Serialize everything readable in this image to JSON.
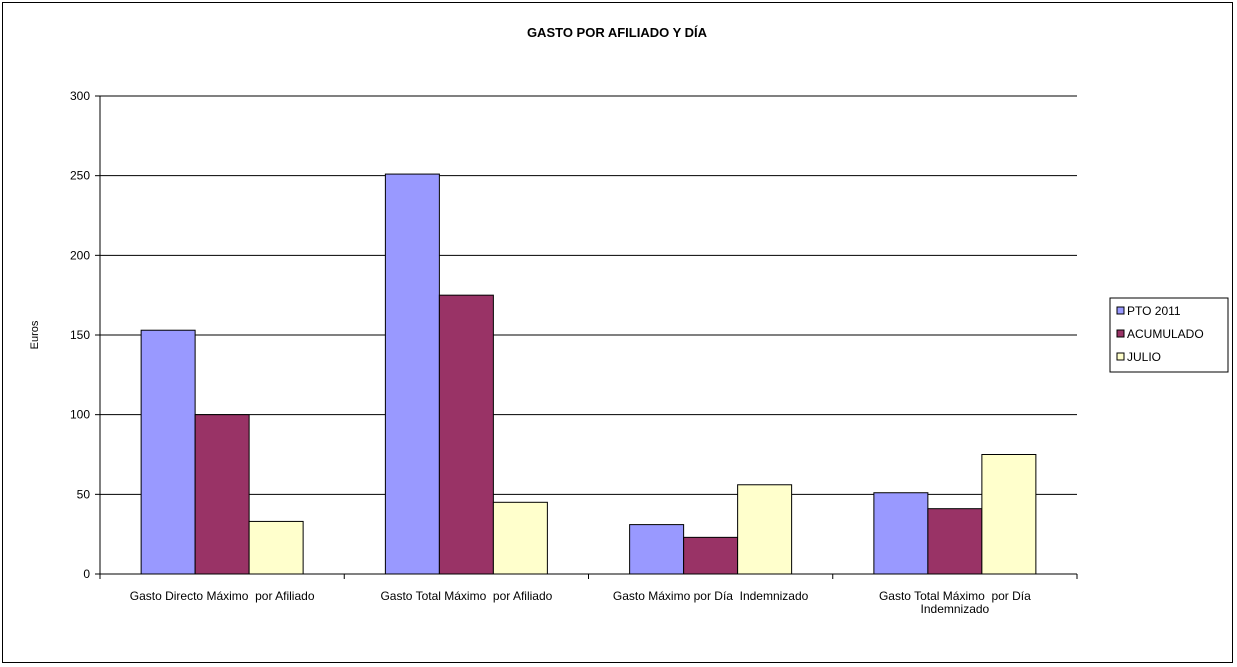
{
  "chart_data": {
    "type": "bar",
    "title": "GASTO POR AFILIADO Y DÍA",
    "xlabel": "",
    "ylabel": "Euros",
    "ylim": [
      0,
      300
    ],
    "yticks": [
      0,
      50,
      100,
      150,
      200,
      250,
      300
    ],
    "grid": true,
    "legend_position": "right",
    "categories": [
      [
        "Gasto Directo Máximo  por Afiliado"
      ],
      [
        "Gasto Total Máximo  por Afiliado"
      ],
      [
        "Gasto Máximo por Día  Indemnizado"
      ],
      [
        "Gasto Total Máximo  por Día",
        "Indemnizado"
      ]
    ],
    "series": [
      {
        "name": "PTO 2011",
        "color": "#9999ff",
        "values": [
          153,
          251,
          31,
          51
        ]
      },
      {
        "name": "ACUMULADO",
        "color": "#993366",
        "values": [
          100,
          175,
          23,
          41
        ]
      },
      {
        "name": "JULIO",
        "color": "#ffffcc",
        "values": [
          33,
          45,
          56,
          75
        ]
      }
    ]
  }
}
